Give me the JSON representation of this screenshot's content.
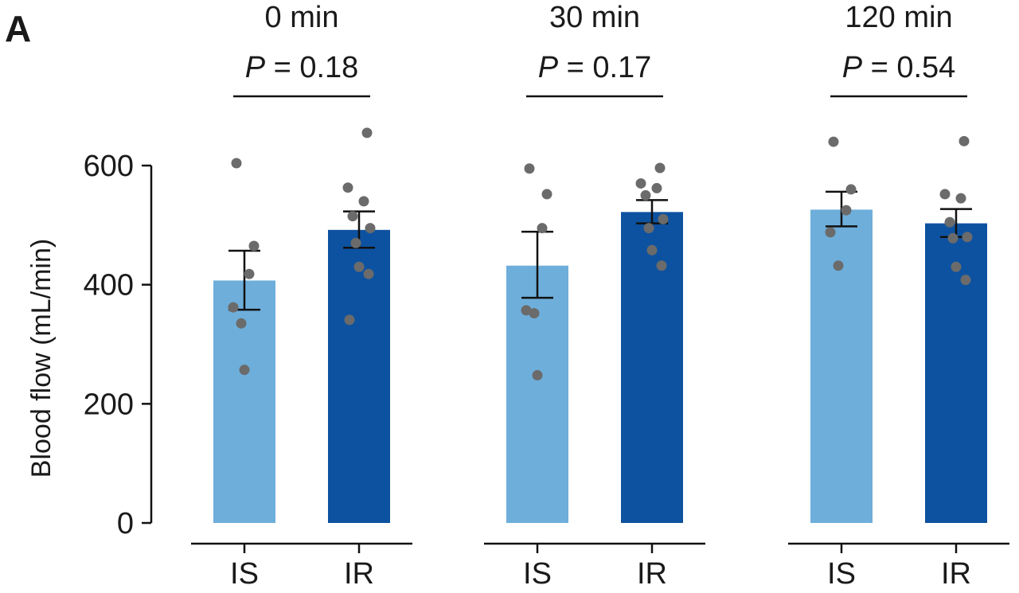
{
  "panel_label": "A",
  "chart_data": {
    "type": "bar",
    "ylabel": "Blood flow (mL/min)",
    "ylim": [
      0,
      650
    ],
    "yticks": [
      0,
      200,
      400,
      600
    ],
    "categories": [
      "IS",
      "IR"
    ],
    "colors": {
      "IS": "#6eaedb",
      "IR": "#0d52a0",
      "points": "#6b6b6b",
      "lines": "#111111"
    },
    "groups": [
      {
        "title": "0 min",
        "p_prefix": "P",
        "p_value": " = 0.18",
        "bars": [
          {
            "category": "IS",
            "mean": 407,
            "sem_low": 358,
            "sem_high": 457,
            "points": [
              604,
              465,
              418,
              362,
              335,
              257
            ]
          },
          {
            "category": "IR",
            "mean": 492,
            "sem_low": 462,
            "sem_high": 523,
            "points": [
              655,
              563,
              540,
              515,
              495,
              470,
              430,
              418,
              341
            ]
          }
        ]
      },
      {
        "title": "30 min",
        "p_prefix": "P",
        "p_value": " = 0.17",
        "bars": [
          {
            "category": "IS",
            "mean": 432,
            "sem_low": 378,
            "sem_high": 489,
            "points": [
              595,
              552,
              495,
              357,
              352,
              248
            ]
          },
          {
            "category": "IR",
            "mean": 522,
            "sem_low": 503,
            "sem_high": 542,
            "points": [
              596,
              570,
              562,
              550,
              510,
              495,
              458,
              432
            ]
          }
        ]
      },
      {
        "title": "120 min",
        "p_prefix": "P",
        "p_value": " = 0.54",
        "bars": [
          {
            "category": "IS",
            "mean": 526,
            "sem_low": 498,
            "sem_high": 556,
            "points": [
              640,
              560,
              525,
              488,
              432
            ]
          },
          {
            "category": "IR",
            "mean": 503,
            "sem_low": 480,
            "sem_high": 527,
            "points": [
              641,
              552,
              545,
              505,
              480,
              478,
              430,
              408
            ]
          }
        ]
      }
    ]
  }
}
